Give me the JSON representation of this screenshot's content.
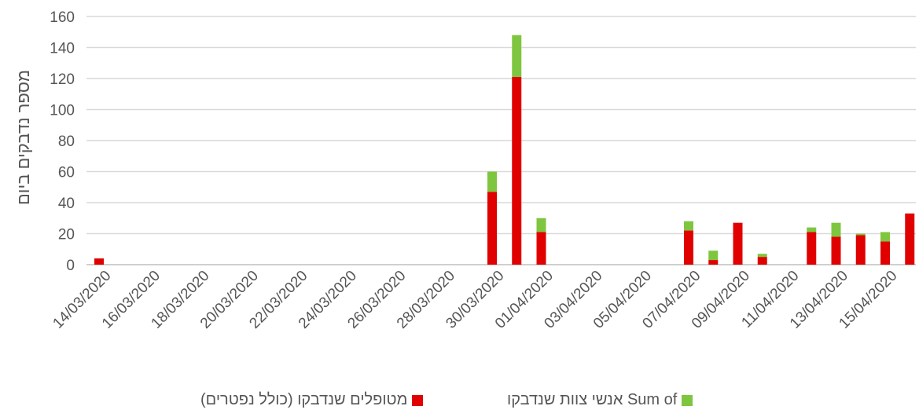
{
  "chart_data": {
    "type": "bar",
    "stacked": true,
    "ylabel": "מספר נדבקים ביום",
    "ylim": [
      0,
      160
    ],
    "yticks": [
      0,
      20,
      40,
      60,
      80,
      100,
      120,
      140,
      160
    ],
    "grid": true,
    "legend_position": "bottom",
    "x_tick_labels": [
      "14/03/2020",
      "16/03/2020",
      "18/03/2020",
      "20/03/2020",
      "22/03/2020",
      "24/03/2020",
      "26/03/2020",
      "28/03/2020",
      "30/03/2020",
      "01/04/2020",
      "03/04/2020",
      "05/04/2020",
      "07/04/2020",
      "09/04/2020",
      "11/04/2020",
      "13/04/2020",
      "15/04/2020"
    ],
    "categories": [
      "14/03/2020",
      "15/03/2020",
      "16/03/2020",
      "17/03/2020",
      "18/03/2020",
      "19/03/2020",
      "20/03/2020",
      "21/03/2020",
      "22/03/2020",
      "23/03/2020",
      "24/03/2020",
      "25/03/2020",
      "26/03/2020",
      "27/03/2020",
      "28/03/2020",
      "29/03/2020",
      "30/03/2020",
      "31/03/2020",
      "01/04/2020",
      "02/04/2020",
      "03/04/2020",
      "04/04/2020",
      "05/04/2020",
      "06/04/2020",
      "07/04/2020",
      "08/04/2020",
      "09/04/2020",
      "10/04/2020",
      "11/04/2020",
      "12/04/2020",
      "13/04/2020",
      "14/04/2020",
      "15/04/2020",
      "16/04/2020"
    ],
    "series": [
      {
        "name": "מטופלים שנדבקו (כולל נפטרים)",
        "color": "#e00000",
        "values": [
          4,
          0,
          0,
          0,
          0,
          0,
          0,
          0,
          0,
          0,
          0,
          0,
          0,
          0,
          0,
          0,
          47,
          121,
          21,
          0,
          0,
          0,
          0,
          0,
          22,
          3,
          27,
          5,
          0,
          21,
          18,
          19,
          15,
          33
        ]
      },
      {
        "name": "Sum of אנשי צוות שנדבקו",
        "color": "#7ec63f",
        "values": [
          0,
          0,
          0,
          0,
          0,
          0,
          0,
          0,
          0,
          0,
          0,
          0,
          0,
          0,
          0,
          0,
          13,
          27,
          9,
          0,
          0,
          0,
          0,
          0,
          6,
          6,
          0,
          2,
          0,
          3,
          9,
          1,
          6,
          0
        ]
      }
    ]
  }
}
